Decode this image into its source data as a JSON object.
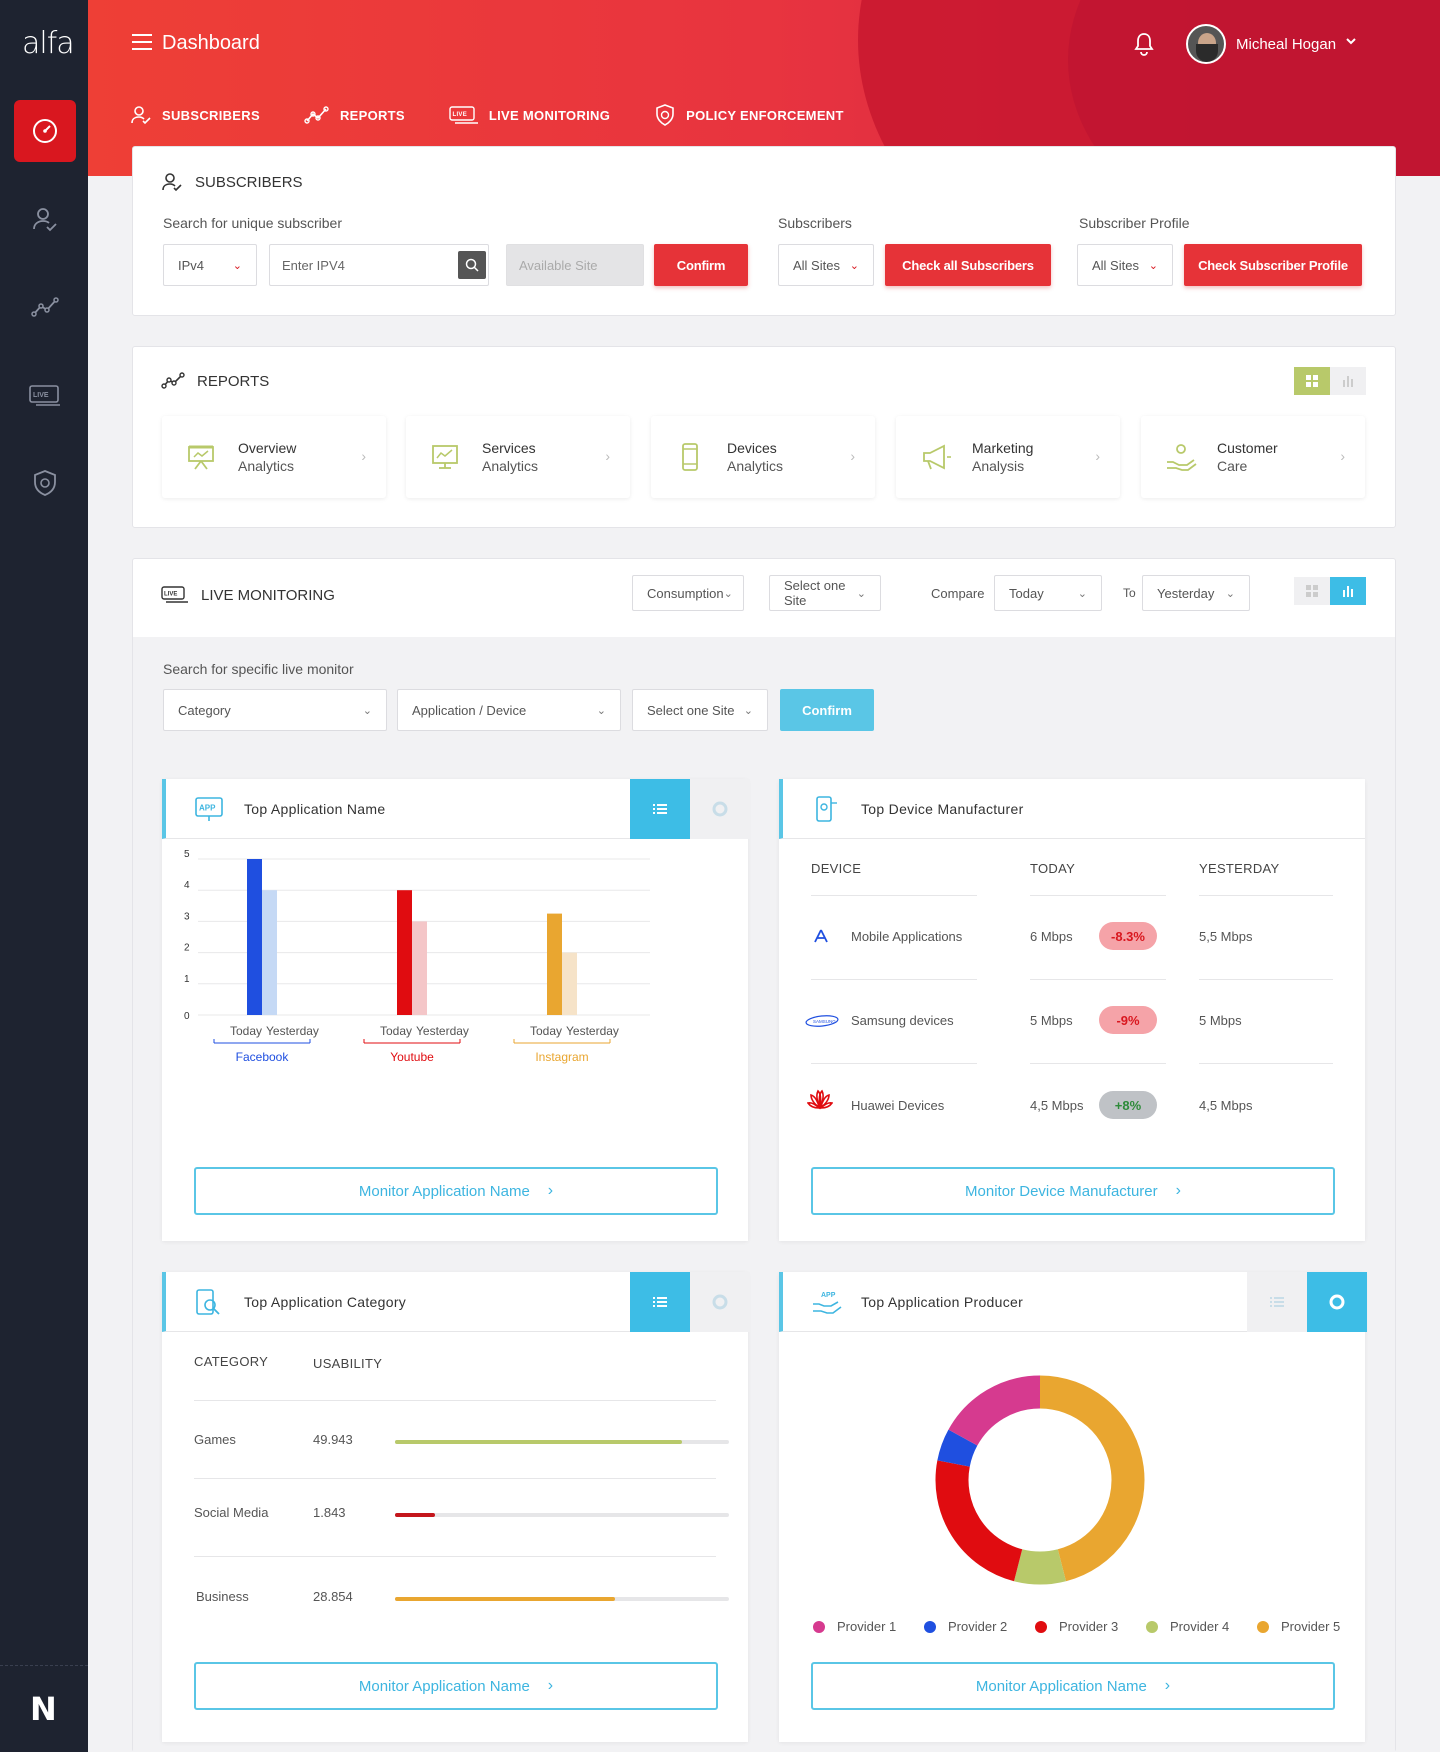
{
  "app": {
    "logo": "alfa",
    "footer_logo": "N"
  },
  "header": {
    "title": "Dashboard",
    "user_name": "Micheal Hogan"
  },
  "nav": [
    {
      "label": "SUBSCRIBERS",
      "icon": "user-check-icon"
    },
    {
      "label": "REPORTS",
      "icon": "trend-icon"
    },
    {
      "label": "LIVE MONITORING",
      "icon": "live-icon"
    },
    {
      "label": "POLICY ENFORCEMENT",
      "icon": "shield-icon"
    }
  ],
  "subscribers": {
    "title": "SUBSCRIBERS",
    "search_label": "Search for unique subscriber",
    "ip_type": "IPv4",
    "ip_placeholder": "Enter IPV4",
    "site_placeholder": "Available Site",
    "confirm": "Confirm",
    "subs_label": "Subscribers",
    "subs_site": "All Sites",
    "check_all": "Check all Subscribers",
    "profile_label": "Subscriber Profile",
    "profile_site": "All Sites",
    "check_profile": "Check Subscriber Profile"
  },
  "reports": {
    "title": "REPORTS",
    "tiles": [
      {
        "l1": "Overview",
        "l2": "Analytics"
      },
      {
        "l1": "Services",
        "l2": "Analytics"
      },
      {
        "l1": "Devices",
        "l2": "Analytics"
      },
      {
        "l1": "Marketing",
        "l2": "Analysis"
      },
      {
        "l1": "Customer",
        "l2": "Care"
      }
    ]
  },
  "live": {
    "title": "LIVE MONITORING",
    "metric": "Consumption",
    "site": "Select one Site",
    "compare_label": "Compare",
    "compare_from": "Today",
    "to_label": "To",
    "compare_to": "Yesterday",
    "search_label": "Search for specific live monitor",
    "category": "Category",
    "app_device": "Application / Device",
    "site2": "Select one Site",
    "confirm": "Confirm"
  },
  "top_app": {
    "title": "Top Application Name",
    "button": "Monitor Application Name",
    "today_label": "Today",
    "yesterday_label": "Yesterday"
  },
  "chart_data": {
    "type": "bar",
    "categories": [
      "Facebook",
      "Youtube",
      "Instagram"
    ],
    "series": [
      {
        "name": "Today",
        "values": [
          5,
          4,
          3.25
        ]
      },
      {
        "name": "Yesterday",
        "values": [
          4,
          3,
          2
        ]
      }
    ],
    "yticks": [
      "0",
      "1",
      "2",
      "3",
      "4",
      "5"
    ],
    "ylim": [
      0,
      5
    ],
    "colors_today": [
      "#1f4fe0",
      "#e00c10",
      "#e9a630"
    ],
    "colors_yesterday": [
      "#c5d9f5",
      "#f4c6c8",
      "#f6e3c8"
    ]
  },
  "top_device": {
    "title": "Top Device Manufacturer",
    "headers": [
      "DEVICE",
      "TODAY",
      "YESTERDAY"
    ],
    "rows": [
      {
        "name": "Mobile Applications",
        "icon": "app-store-icon",
        "today": "6  Mbps",
        "change": "-8.3%",
        "dir": "neg",
        "yesterday": "5,5 Mbps"
      },
      {
        "name": "Samsung devices",
        "icon": "samsung-icon",
        "today": "5 Mbps",
        "change": "-9%",
        "dir": "neg",
        "yesterday": "5 Mbps"
      },
      {
        "name": "Huawei Devices",
        "icon": "huawei-icon",
        "today": "4,5 Mbps",
        "change": "+8%",
        "dir": "pos",
        "yesterday": "4,5 Mbps"
      }
    ],
    "button": "Monitor Device Manufacturer"
  },
  "top_category": {
    "title": "Top Application Category",
    "headers": [
      "CATEGORY",
      "USABILITY"
    ],
    "rows": [
      {
        "name": "Games",
        "value": "49.943",
        "fraction": 0.86,
        "color": "#b8c96a"
      },
      {
        "name": "Social Media",
        "value": "1.843",
        "fraction": 0.12,
        "color": "#c4161c"
      },
      {
        "name": "Business",
        "value": "28.854",
        "fraction": 0.66,
        "color": "#e9a630"
      }
    ],
    "button": "Monitor Application Name"
  },
  "top_producer": {
    "title": "Top Application Producer",
    "button": "Monitor Application Name",
    "donut": [
      {
        "name": "Provider 1",
        "value": 17,
        "color": "#d63a8f"
      },
      {
        "name": "Provider 2",
        "value": 5,
        "color": "#1f4fe0"
      },
      {
        "name": "Provider 3",
        "value": 24,
        "color": "#e00c10"
      },
      {
        "name": "Provider 4",
        "value": 8,
        "color": "#b8c96a"
      },
      {
        "name": "Provider 5",
        "value": 46,
        "color": "#e9a630"
      }
    ]
  }
}
